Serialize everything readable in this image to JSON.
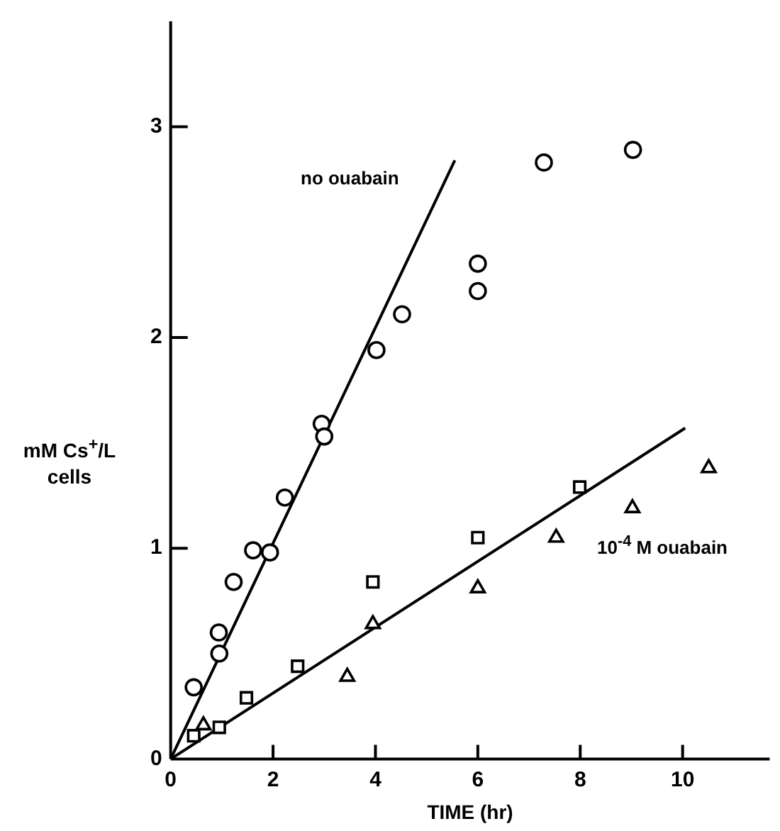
{
  "chart_data": {
    "type": "scatter",
    "xlabel": "TIME (hr)",
    "ylabel": "mM Cs$^{+}$/L cells",
    "xlim": [
      0,
      11.7
    ],
    "ylim": [
      0,
      3.5
    ],
    "xticks": [
      0,
      2,
      4,
      6,
      8,
      10
    ],
    "yticks": [
      0,
      1,
      2,
      3
    ],
    "grid": false,
    "legend": false,
    "series": [
      {
        "color": "#000000",
        "marker": "circle",
        "x": [
          0.45,
          0.94,
          1.61,
          2.23,
          3.0,
          4.52,
          6.0,
          7.29,
          9.03
        ],
        "values": [
          0.34,
          0.6,
          0.99,
          1.24,
          1.53,
          2.11,
          2.35,
          2.83,
          2.89
        ]
      },
      {
        "color": "#000000",
        "marker": "circle",
        "x": [
          0.95,
          1.23,
          1.94,
          2.95,
          4.02,
          6.0
        ],
        "values": [
          0.5,
          0.84,
          0.98,
          1.59,
          1.94,
          2.22
        ]
      },
      {
        "color": "#000000",
        "marker": "square",
        "x": [
          0.45,
          0.95,
          1.48,
          2.48,
          3.95,
          6.0,
          7.99
        ],
        "values": [
          0.11,
          0.15,
          0.29,
          0.44,
          0.84,
          1.05,
          1.29
        ]
      },
      {
        "color": "#000000",
        "marker": "triangle",
        "x": [
          0.64,
          3.45,
          3.95,
          6.0,
          7.53,
          9.02,
          10.51
        ],
        "values": [
          0.16,
          0.39,
          0.64,
          0.81,
          1.05,
          1.19,
          1.38
        ]
      },
      {
        "type": "line",
        "color": "#000000",
        "marker": "none",
        "x": [
          0,
          5.55
        ],
        "values": [
          0,
          2.84
        ]
      },
      {
        "type": "line",
        "color": "#000000",
        "marker": "none",
        "x": [
          0,
          10.05
        ],
        "values": [
          0,
          1.57
        ]
      }
    ],
    "annotations": [
      "no ouabain",
      "10$^{-4}$ M ouabain"
    ]
  }
}
